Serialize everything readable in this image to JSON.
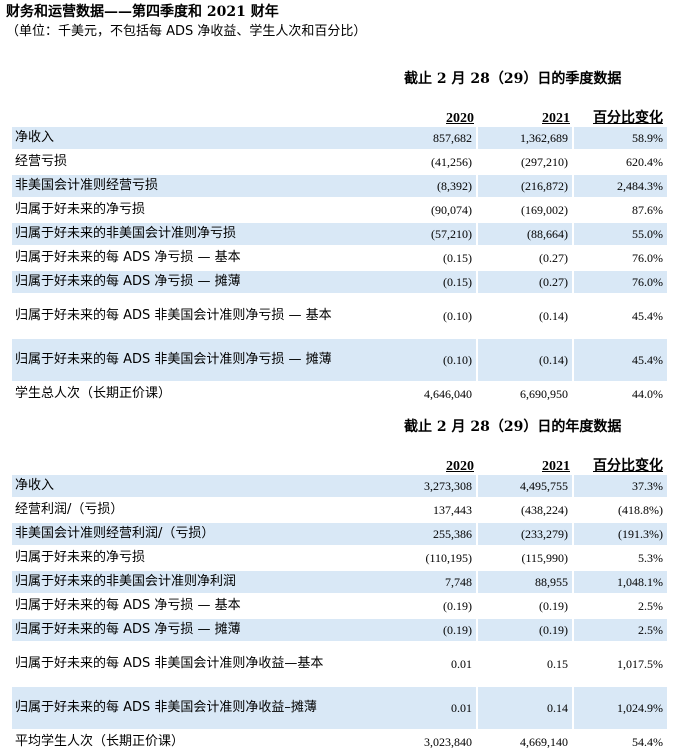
{
  "header": {
    "title": "财务和运营数据——第四季度和 2021 财年",
    "subtitle": "（单位：千美元，不包括每 ADS 净收益、学生人次和百分比）"
  },
  "quarterly": {
    "section_title": "截止 2 月 28（29）日的季度数据",
    "columns": {
      "y2020": "2020",
      "y2021": "2021",
      "change": "百分比变化"
    },
    "rows": [
      {
        "label": "净收入",
        "v2020": "857,682",
        "v2021": "1,362,689",
        "change": "58.9%"
      },
      {
        "label": "经营亏损",
        "v2020": "(41,256)",
        "v2021": "(297,210)",
        "change": "620.4%"
      },
      {
        "label": "非美国会计准则经营亏损",
        "v2020": "(8,392)",
        "v2021": "(216,872)",
        "change": "2,484.3%"
      },
      {
        "label": "归属于好未来的净亏损",
        "v2020": "(90,074)",
        "v2021": "(169,002)",
        "change": "87.6%"
      },
      {
        "label": "归属于好未来的非美国会计准则净亏损",
        "v2020": "(57,210)",
        "v2021": "(88,664)",
        "change": "55.0%"
      },
      {
        "label": "归属于好未来的每 ADS 净亏损 — 基本",
        "v2020": "(0.15)",
        "v2021": "(0.27)",
        "change": "76.0%"
      },
      {
        "label": "归属于好未来的每 ADS 净亏损 — 摊薄",
        "v2020": "(0.15)",
        "v2021": "(0.27)",
        "change": "76.0%"
      },
      {
        "label": "归属于好未来的每 ADS 非美国会计准则净亏损 — 基本",
        "v2020": "(0.10)",
        "v2021": "(0.14)",
        "change": "45.4%"
      },
      {
        "label": "归属于好未来的每 ADS 非美国会计准则净亏损 — 摊薄",
        "v2020": "(0.10)",
        "v2021": "(0.14)",
        "change": "45.4%"
      },
      {
        "label": "学生总人次（长期正价课）",
        "v2020": "4,646,040",
        "v2021": "6,690,950",
        "change": "44.0%"
      }
    ]
  },
  "annual": {
    "section_title": "截止 2 月 28（29）日的年度数据",
    "columns": {
      "y2020": "2020",
      "y2021": "2021",
      "change": "百分比变化"
    },
    "rows": [
      {
        "label": "净收入",
        "v2020": "3,273,308",
        "v2021": "4,495,755",
        "change": "37.3%"
      },
      {
        "label": "经营利润/（亏损）",
        "v2020": "137,443",
        "v2021": "(438,224)",
        "change": "(418.8%)"
      },
      {
        "label": "非美国会计准则经营利润/（亏损）",
        "v2020": "255,386",
        "v2021": "(233,279)",
        "change": "(191.3%)"
      },
      {
        "label": "归属于好未来的净亏损",
        "v2020": "(110,195)",
        "v2021": "(115,990)",
        "change": "5.3%"
      },
      {
        "label": "归属于好未来的非美国会计准则净利润",
        "v2020": "7,748",
        "v2021": "88,955",
        "change": "1,048.1%"
      },
      {
        "label": "归属于好未来的每 ADS 净亏损 — 基本",
        "v2020": "(0.19)",
        "v2021": "(0.19)",
        "change": "2.5%"
      },
      {
        "label": "归属于好未来的每 ADS 净亏损 — 摊薄",
        "v2020": "(0.19)",
        "v2021": "(0.19)",
        "change": "2.5%"
      },
      {
        "label": "归属于好未来的每 ADS 非美国会计准则净收益—基本",
        "v2020": "0.01",
        "v2021": "0.15",
        "change": "1,017.5%"
      },
      {
        "label": "归属于好未来的每 ADS 非美国会计准则净收益–摊薄",
        "v2020": "0.01",
        "v2021": "0.14",
        "change": "1,024.9%"
      },
      {
        "label": "平均学生人次（长期正价课）",
        "v2020": "3,023,840",
        "v2021": "4,669,140",
        "change": "54.4%"
      }
    ]
  }
}
